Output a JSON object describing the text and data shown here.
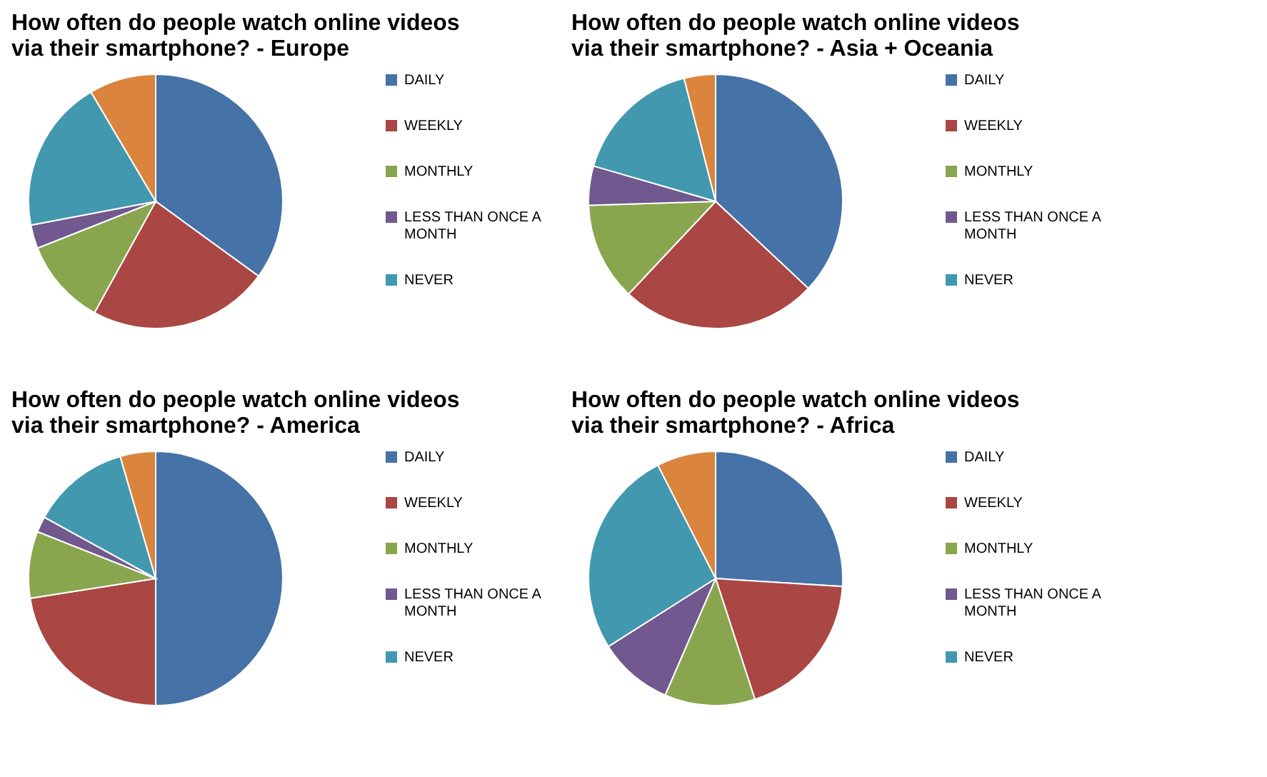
{
  "chart_data": [
    {
      "type": "pie",
      "title": "How often do people watch online videos via their smartphone? - Europe",
      "legend": "right",
      "categories": [
        "DAILY",
        "WEEKLY",
        "MONTHLY",
        "LESS THAN ONCE A MONTH",
        "NEVER",
        null
      ],
      "values": [
        35,
        23,
        11,
        3,
        19.5,
        8.5
      ],
      "colors": [
        "#4572a7",
        "#aa4643",
        "#89a54e",
        "#71588f",
        "#4198af",
        "#db843d"
      ]
    },
    {
      "type": "pie",
      "title": "How often do people watch online videos via their smartphone? - Asia + Oceania",
      "legend": "right",
      "categories": [
        "DAILY",
        "WEEKLY",
        "MONTHLY",
        "LESS THAN ONCE A MONTH",
        "NEVER",
        null
      ],
      "values": [
        37,
        25,
        12.5,
        5,
        16.5,
        4
      ],
      "colors": [
        "#4572a7",
        "#aa4643",
        "#89a54e",
        "#71588f",
        "#4198af",
        "#db843d"
      ]
    },
    {
      "type": "pie",
      "title": "How often do people watch online videos via their smartphone? - America",
      "legend": "right",
      "categories": [
        "DAILY",
        "WEEKLY",
        "MONTHLY",
        "LESS THAN ONCE A MONTH",
        "NEVER",
        null
      ],
      "values": [
        50,
        22.5,
        8.5,
        2,
        12.5,
        4.5
      ],
      "colors": [
        "#4572a7",
        "#aa4643",
        "#89a54e",
        "#71588f",
        "#4198af",
        "#db843d"
      ]
    },
    {
      "type": "pie",
      "title": "How often do people watch online videos via their smartphone? - Africa",
      "legend": "right",
      "categories": [
        "DAILY",
        "WEEKLY",
        "MONTHLY",
        "LESS THAN ONCE A MONTH",
        "NEVER",
        null
      ],
      "values": [
        26,
        19,
        11.5,
        9.5,
        26.5,
        7.5
      ],
      "colors": [
        "#4572a7",
        "#aa4643",
        "#89a54e",
        "#71588f",
        "#4198af",
        "#db843d"
      ]
    }
  ]
}
